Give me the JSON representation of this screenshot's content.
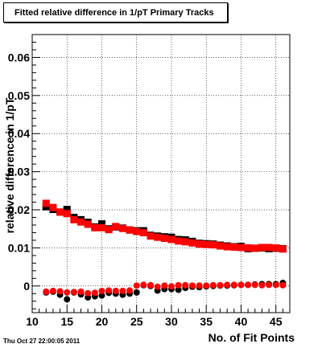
{
  "chart_data": {
    "type": "scatter",
    "title": "Fitted relative difference in 1/pT Primary Tracks",
    "xlabel": "No. of Fit Points",
    "ylabel": "relative difference in 1/pT",
    "xlim": [
      10,
      47
    ],
    "ylim": [
      -0.007,
      0.066
    ],
    "x_ticks": [
      "10",
      "15",
      "20",
      "25",
      "30",
      "35",
      "40",
      "45"
    ],
    "x_tick_values": [
      10,
      15,
      20,
      25,
      30,
      35,
      40,
      45
    ],
    "y_ticks": [
      "0",
      "0.01",
      "0.02",
      "0.03",
      "0.04",
      "0.05",
      "0.06"
    ],
    "y_tick_values": [
      0,
      0.01,
      0.02,
      0.03,
      0.04,
      0.05,
      0.06
    ],
    "grid": true,
    "timestamp": "Thu Oct 27 22:00:05 2011",
    "colors": {
      "black_series": "#000000",
      "red_series": "#ff0000"
    },
    "series": [
      {
        "marker": "square",
        "color": "#000000",
        "x": [
          12,
          13,
          14,
          15,
          16,
          17,
          18,
          19,
          20,
          21,
          22,
          23,
          24,
          25,
          26,
          27,
          28,
          29,
          30,
          31,
          32,
          33,
          34,
          35,
          36,
          37,
          38,
          39,
          40,
          41,
          42,
          43,
          44,
          45,
          46
        ],
        "values": [
          0.0208,
          0.0201,
          0.0194,
          0.0201,
          0.018,
          0.0174,
          0.0167,
          0.0155,
          0.0163,
          0.015,
          0.0155,
          0.0152,
          0.0147,
          0.0145,
          0.0145,
          0.0133,
          0.0131,
          0.0129,
          0.0128,
          0.0122,
          0.0121,
          0.0117,
          0.0112,
          0.0111,
          0.011,
          0.0107,
          0.0105,
          0.0103,
          0.0104,
          0.0098,
          0.0099,
          0.01,
          0.0098,
          0.0099,
          0.0098
        ]
      },
      {
        "marker": "square",
        "color": "#ff0000",
        "x": [
          12,
          13,
          14,
          15,
          16,
          17,
          18,
          19,
          20,
          21,
          22,
          23,
          24,
          25,
          26,
          27,
          28,
          29,
          30,
          31,
          32,
          33,
          34,
          35,
          36,
          37,
          38,
          39,
          40,
          41,
          42,
          43,
          44,
          45,
          46
        ],
        "values": [
          0.0217,
          0.0206,
          0.0194,
          0.019,
          0.0174,
          0.0168,
          0.0162,
          0.0153,
          0.0153,
          0.0148,
          0.0156,
          0.0151,
          0.0147,
          0.0143,
          0.014,
          0.0131,
          0.0128,
          0.0125,
          0.0122,
          0.0118,
          0.0116,
          0.0113,
          0.011,
          0.0109,
          0.0108,
          0.0105,
          0.0103,
          0.0102,
          0.0101,
          0.01,
          0.0099,
          0.0101,
          0.0101,
          0.01,
          0.0097
        ]
      },
      {
        "marker": "circle",
        "color": "#000000",
        "x": [
          12,
          13,
          14,
          15,
          16,
          17,
          18,
          19,
          20,
          21,
          22,
          23,
          24,
          25,
          26,
          27,
          28,
          29,
          30,
          31,
          32,
          33,
          34,
          35,
          36,
          37,
          38,
          39,
          40,
          41,
          42,
          43,
          44,
          45,
          46
        ],
        "values": [
          -0.0017,
          -0.0015,
          -0.0023,
          -0.0035,
          -0.0017,
          -0.0022,
          -0.003,
          -0.0027,
          -0.0025,
          -0.0018,
          -0.002,
          -0.0023,
          -0.002,
          -0.0017,
          0.0002,
          0.0,
          -0.0012,
          -0.0008,
          -0.0008,
          -0.001,
          -0.0005,
          -0.0002,
          -0.0003,
          -0.0001,
          0.0,
          0.0001,
          0.0001,
          0.0002,
          0.0003,
          0.0003,
          0.0004,
          0.0005,
          0.0005,
          0.0005,
          0.0008
        ]
      },
      {
        "marker": "circle",
        "color": "#ff0000",
        "x": [
          12,
          13,
          14,
          15,
          16,
          17,
          18,
          19,
          20,
          21,
          22,
          23,
          24,
          25,
          26,
          27,
          28,
          29,
          30,
          31,
          32,
          33,
          34,
          35,
          36,
          37,
          38,
          39,
          40,
          41,
          42,
          43,
          44,
          45,
          46
        ],
        "values": [
          -0.0015,
          -0.0013,
          -0.0014,
          -0.0017,
          -0.0016,
          -0.0015,
          -0.0019,
          -0.0018,
          -0.0013,
          -0.0012,
          -0.0013,
          -0.0013,
          -0.0012,
          0.0001,
          0.0003,
          0.0002,
          -0.0002,
          0.0001,
          -0.0001,
          0.0002,
          0.0002,
          0.0001,
          0.0001,
          0.0001,
          0.0002,
          0.0002,
          0.0003,
          0.0003,
          0.0003,
          0.0003,
          0.0003,
          0.0002,
          0.0003,
          0.0003,
          0.0002
        ]
      }
    ]
  }
}
